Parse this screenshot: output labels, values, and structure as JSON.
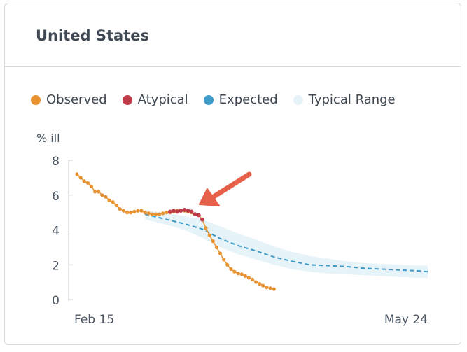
{
  "card": {
    "title": "United States"
  },
  "legend": [
    {
      "label": "Observed",
      "color": "#e8912f"
    },
    {
      "label": "Atypical",
      "color": "#bf3a48"
    },
    {
      "label": "Expected",
      "color": "#3e9ac7"
    },
    {
      "label": "Typical Range",
      "color": "#e6f3f9"
    }
  ],
  "chart_data": {
    "type": "line",
    "ylabel": "% ill",
    "ylim": [
      0,
      8
    ],
    "yticks": [
      0,
      2,
      4,
      6,
      8
    ],
    "x_tick_labels": [
      {
        "label": "Feb 15",
        "day": 0
      },
      {
        "label": "May 24",
        "day": 98
      }
    ],
    "series": [
      {
        "name": "Observed",
        "color": "#e8912f",
        "x": [
          0,
          1,
          2,
          3,
          4,
          5,
          6,
          7,
          8,
          9,
          10,
          11,
          12,
          13,
          14,
          15,
          16,
          17,
          18,
          19,
          20,
          21,
          22,
          23,
          24,
          25,
          26,
          27,
          28,
          29,
          30,
          31,
          32,
          33,
          34,
          35,
          36,
          37,
          38,
          39,
          40,
          41,
          42,
          43,
          44,
          45,
          46,
          47,
          48,
          49,
          50,
          51,
          52,
          53,
          54,
          55,
          56,
          57,
          58,
          59
        ],
        "y": [
          7.2,
          7.0,
          6.8,
          6.7,
          6.5,
          6.2,
          6.2,
          6.0,
          5.9,
          5.7,
          5.6,
          5.4,
          5.2,
          5.1,
          5.0,
          5.0,
          5.05,
          5.1,
          5.1,
          5.0,
          4.95,
          4.9,
          4.9,
          4.9,
          4.95,
          5.0,
          5.0,
          5.05,
          5.1,
          5.1,
          5.1,
          5.05,
          5.0,
          4.9,
          4.85,
          4.6,
          4.1,
          3.7,
          3.35,
          3.0,
          2.65,
          2.3,
          2.0,
          1.75,
          1.6,
          1.5,
          1.45,
          1.35,
          1.25,
          1.15,
          1.0,
          0.9,
          0.8,
          0.7,
          0.65,
          0.6,
          null,
          null,
          null,
          null
        ]
      },
      {
        "name": "Atypical",
        "color": "#bf3a48",
        "x": [
          26,
          27,
          28,
          29,
          30,
          31,
          32,
          33,
          34,
          35
        ],
        "y": [
          5.05,
          5.1,
          5.05,
          5.1,
          5.15,
          5.1,
          5.05,
          4.9,
          4.85,
          4.6
        ]
      },
      {
        "name": "Expected",
        "color": "#3e9ac7",
        "x": [
          19,
          25,
          30,
          35,
          40,
          45,
          50,
          55,
          60,
          65,
          70,
          75,
          80,
          85,
          90,
          95,
          98
        ],
        "y": [
          4.9,
          4.6,
          4.35,
          4.05,
          3.5,
          3.1,
          2.8,
          2.45,
          2.2,
          2.0,
          1.95,
          1.9,
          1.8,
          1.75,
          1.7,
          1.65,
          1.6
        ]
      },
      {
        "name": "Typical Range",
        "color": "#e6f3f9",
        "x": [
          19,
          25,
          30,
          35,
          40,
          45,
          50,
          55,
          60,
          65,
          70,
          75,
          80,
          85,
          90,
          95,
          98
        ],
        "upper": [
          5.15,
          4.95,
          4.8,
          4.6,
          4.2,
          3.8,
          3.45,
          3.05,
          2.75,
          2.5,
          2.35,
          2.2,
          2.1,
          2.05,
          2.0,
          1.95,
          1.95
        ],
        "lower": [
          4.6,
          4.3,
          4.0,
          3.55,
          3.0,
          2.6,
          2.3,
          2.0,
          1.75,
          1.6,
          1.5,
          1.45,
          1.4,
          1.35,
          1.3,
          1.25,
          1.25
        ]
      }
    ],
    "annotation": {
      "type": "arrow",
      "points_to": {
        "day": 30,
        "value": 5.5
      },
      "color": "#e7604a"
    }
  }
}
